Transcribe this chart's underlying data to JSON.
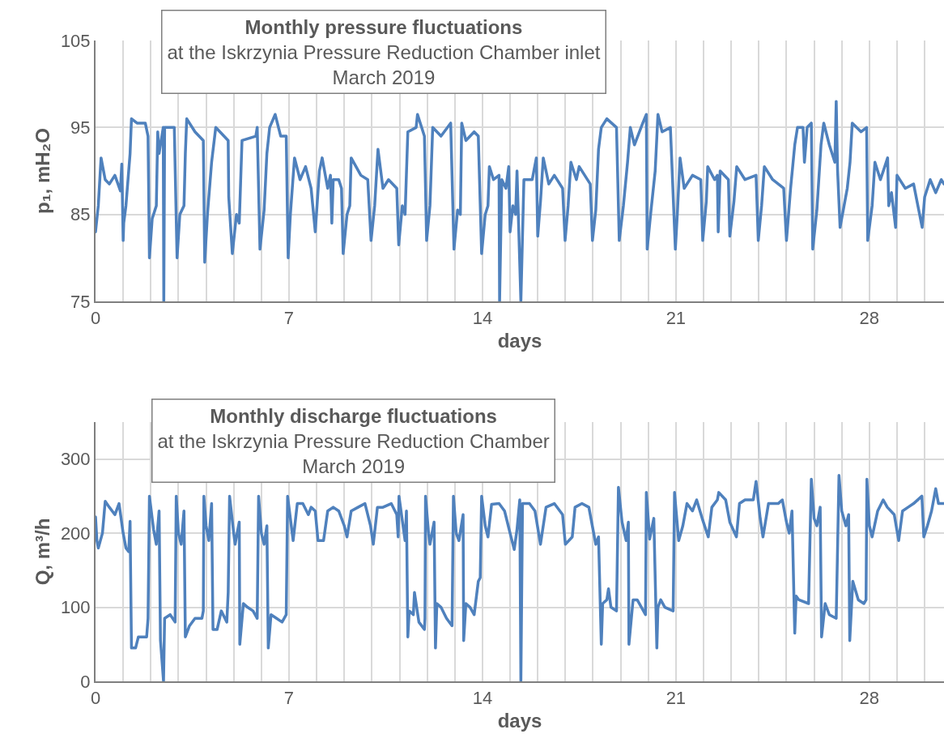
{
  "chart_data": [
    {
      "type": "line",
      "title": "Monthly pressure fluctuations",
      "subtitle": "at the Iskrzynia Pressure Reduction Chamber inlet\nMarch 2019",
      "xlabel": "days",
      "ylabel": "p₁, mH₂O",
      "xlim": [
        0,
        30.7
      ],
      "xticks": [
        0,
        {
          "value": 1,
          "label": null
        },
        {
          "value": 2,
          "label": null
        },
        {
          "value": 3,
          "label": null
        },
        {
          "value": 4,
          "label": null
        },
        {
          "value": 5,
          "label": null
        },
        {
          "value": 6,
          "label": null
        },
        7,
        {
          "value": 8,
          "label": null
        },
        {
          "value": 9,
          "label": null
        },
        {
          "value": 10,
          "label": null
        },
        {
          "value": 11,
          "label": null
        },
        {
          "value": 12,
          "label": null
        },
        {
          "value": 13,
          "label": null
        },
        14,
        {
          "value": 15,
          "label": null
        },
        {
          "value": 16,
          "label": null
        },
        {
          "value": 17,
          "label": null
        },
        {
          "value": 18,
          "label": null
        },
        {
          "value": 19,
          "label": null
        },
        {
          "value": 20,
          "label": null
        },
        21,
        {
          "value": 22,
          "label": null
        },
        {
          "value": 23,
          "label": null
        },
        {
          "value": 24,
          "label": null
        },
        {
          "value": 25,
          "label": null
        },
        {
          "value": 26,
          "label": null
        },
        {
          "value": 27,
          "label": null
        },
        28,
        {
          "value": 29,
          "label": null
        },
        {
          "value": 30,
          "label": null
        }
      ],
      "ylim": [
        75,
        105
      ],
      "yticks": [
        75,
        85,
        95,
        105
      ],
      "grid": true,
      "marker": "none",
      "line_style": "solid",
      "series": [
        {
          "color": "#4f81bd",
          "x": [
            0,
            0.1,
            0.2,
            0.35,
            0.5,
            0.7,
            0.9,
            0.95,
            1.0,
            1.02,
            1.1,
            1.25,
            1.3,
            1.5,
            1.8,
            1.9,
            1.95,
            2.05,
            2.2,
            2.25,
            2.3,
            2.45,
            2.47,
            2.5,
            2.85,
            2.95,
            3.05,
            3.2,
            3.25,
            3.3,
            3.6,
            3.9,
            3.95,
            4.05,
            4.2,
            4.35,
            4.8,
            4.82,
            4.95,
            5.1,
            5.2,
            5.3,
            5.8,
            5.85,
            5.95,
            6.1,
            6.2,
            6.3,
            6.5,
            6.7,
            6.9,
            6.97,
            7.05,
            7.2,
            7.4,
            7.6,
            7.8,
            7.95,
            8.1,
            8.2,
            8.4,
            8.5,
            8.55,
            8.6,
            8.8,
            8.9,
            8.96,
            9.1,
            9.2,
            9.25,
            9.6,
            9.85,
            9.97,
            10.1,
            10.22,
            10.4,
            10.6,
            10.9,
            10.97,
            11.1,
            11.2,
            11.3,
            11.6,
            11.65,
            11.9,
            11.98,
            12.1,
            12.2,
            12.5,
            12.85,
            12.97,
            13.1,
            13.2,
            13.25,
            13.4,
            13.7,
            13.85,
            13.97,
            14.1,
            14.2,
            14.25,
            14.4,
            14.6,
            14.62,
            14.7,
            14.85,
            14.95,
            15.0,
            15.1,
            15.2,
            15.25,
            15.39,
            15.5,
            15.8,
            15.95,
            16.0,
            16.1,
            16.2,
            16.4,
            16.6,
            16.9,
            16.99,
            17.1,
            17.2,
            17.4,
            17.5,
            17.9,
            17.98,
            18.1,
            18.2,
            18.3,
            18.5,
            18.85,
            18.95,
            19.1,
            19.25,
            19.35,
            19.5,
            19.8,
            19.93,
            19.96,
            20.1,
            20.25,
            20.35,
            20.5,
            20.8,
            20.98,
            21.05,
            21.15,
            21.3,
            21.6,
            21.9,
            21.97,
            22.1,
            22.15,
            22.4,
            22.5,
            22.53,
            22.6,
            22.9,
            22.95,
            23.1,
            23.2,
            23.5,
            23.9,
            23.98,
            24.1,
            24.2,
            24.5,
            24.9,
            25.0,
            25.15,
            25.3,
            25.4,
            25.6,
            25.65,
            25.75,
            25.9,
            25.95,
            26.1,
            26.25,
            26.35,
            26.55,
            26.75,
            26.8,
            26.85,
            26.94,
            27.2,
            27.3,
            27.38,
            27.7,
            27.9,
            27.94,
            28.1,
            28.2,
            28.4,
            28.66,
            28.7,
            28.8,
            28.95,
            29.0,
            29.3,
            29.6,
            29.91,
            30.0,
            30.2,
            30.4,
            30.6,
            30.7
          ],
          "values": [
            83,
            86,
            91.5,
            89,
            88.5,
            89.5,
            87.7,
            90.8,
            82,
            84,
            86,
            92,
            96,
            95.5,
            95.5,
            94,
            80,
            84.5,
            86,
            94.5,
            92,
            95,
            75,
            95,
            95,
            80,
            85,
            86,
            92,
            96,
            94.5,
            93.5,
            79.5,
            85,
            91,
            95,
            93.5,
            87,
            80.5,
            85,
            84,
            93.5,
            94,
            95,
            81,
            85.5,
            92,
            95,
            96.5,
            94,
            94,
            80,
            85,
            91.5,
            89,
            90.5,
            88,
            83,
            90,
            91.5,
            88,
            89.5,
            84,
            89,
            89,
            88,
            80.5,
            85,
            86,
            91.5,
            89.5,
            89,
            82,
            86,
            92.5,
            88,
            89,
            88,
            81.5,
            86,
            85,
            94.5,
            95,
            96.5,
            94,
            82,
            86,
            95,
            94,
            95.5,
            81,
            85.5,
            85,
            95.5,
            93.5,
            94.5,
            94,
            80.5,
            85,
            86,
            90.5,
            89,
            89.5,
            75,
            89,
            88,
            90.5,
            83,
            86,
            85,
            90,
            75,
            89,
            89,
            91.5,
            82.5,
            86.5,
            91.5,
            88.5,
            89.5,
            88,
            82,
            86,
            91,
            89,
            90.5,
            88.5,
            82,
            85.5,
            92.5,
            95,
            96,
            95,
            82,
            86,
            91,
            95,
            93,
            95.5,
            96.5,
            81,
            85.5,
            90,
            96.5,
            94.5,
            95,
            81,
            85,
            91.5,
            88,
            89.5,
            89,
            82,
            86.5,
            90.5,
            89,
            89.5,
            83,
            90,
            89,
            82.5,
            86.5,
            90.5,
            89,
            89.5,
            82,
            86,
            90.5,
            89,
            88,
            82,
            88,
            93,
            95,
            95,
            91,
            95,
            95.5,
            81,
            85.5,
            93,
            95.5,
            93,
            91,
            98,
            90,
            83.5,
            88,
            91,
            95.5,
            94.5,
            95,
            82,
            86,
            91,
            89,
            91.5,
            86,
            87.5,
            83.5,
            89.5,
            88,
            88.5,
            83.5,
            87,
            89,
            87.5,
            89,
            88.5
          ]
        }
      ]
    },
    {
      "type": "line",
      "title": "Monthly discharge fluctuations",
      "subtitle": "at the Iskrzynia Pressure Reduction Chamber\nMarch 2019",
      "xlabel": "days",
      "ylabel": "Q, m³/h",
      "xlim": [
        0,
        30.7
      ],
      "xticks": [
        0,
        {
          "value": 1,
          "label": null
        },
        {
          "value": 2,
          "label": null
        },
        {
          "value": 3,
          "label": null
        },
        {
          "value": 4,
          "label": null
        },
        {
          "value": 5,
          "label": null
        },
        {
          "value": 6,
          "label": null
        },
        7,
        {
          "value": 8,
          "label": null
        },
        {
          "value": 9,
          "label": null
        },
        {
          "value": 10,
          "label": null
        },
        {
          "value": 11,
          "label": null
        },
        {
          "value": 12,
          "label": null
        },
        {
          "value": 13,
          "label": null
        },
        14,
        {
          "value": 15,
          "label": null
        },
        {
          "value": 16,
          "label": null
        },
        {
          "value": 17,
          "label": null
        },
        {
          "value": 18,
          "label": null
        },
        {
          "value": 19,
          "label": null
        },
        {
          "value": 20,
          "label": null
        },
        21,
        {
          "value": 22,
          "label": null
        },
        {
          "value": 23,
          "label": null
        },
        {
          "value": 24,
          "label": null
        },
        {
          "value": 25,
          "label": null
        },
        {
          "value": 26,
          "label": null
        },
        {
          "value": 27,
          "label": null
        },
        28,
        {
          "value": 29,
          "label": null
        },
        {
          "value": 30,
          "label": null
        }
      ],
      "ylim": [
        0,
        350
      ],
      "yticks": [
        0,
        100,
        200,
        300
      ],
      "grid": true,
      "marker": "none",
      "line_style": "solid",
      "series": [
        {
          "color": "#4f81bd",
          "x": [
            0,
            0.05,
            0.1,
            0.25,
            0.35,
            0.5,
            0.7,
            0.85,
            1.0,
            1.1,
            1.2,
            1.25,
            1.3,
            1.45,
            1.55,
            1.85,
            1.9,
            1.95,
            2.1,
            2.2,
            2.3,
            2.35,
            2.46,
            2.5,
            2.7,
            2.88,
            2.92,
            3.0,
            3.1,
            3.2,
            3.25,
            3.4,
            3.6,
            3.85,
            3.9,
            3.92,
            4.0,
            4.1,
            4.2,
            4.25,
            4.4,
            4.55,
            4.75,
            4.8,
            4.85,
            5.0,
            5.05,
            5.2,
            5.22,
            5.35,
            5.5,
            5.7,
            5.85,
            5.9,
            6.0,
            6.1,
            6.2,
            6.25,
            6.35,
            6.55,
            6.75,
            6.9,
            6.95,
            7.05,
            7.15,
            7.3,
            7.5,
            7.7,
            7.8,
            7.95,
            8.05,
            8.25,
            8.4,
            8.6,
            8.8,
            9.0,
            9.1,
            9.25,
            9.5,
            9.75,
            9.95,
            10.05,
            10.2,
            10.4,
            10.7,
            10.9,
            10.95,
            10.98,
            11.2,
            11.25,
            11.3,
            11.35,
            11.5,
            11.54,
            11.7,
            11.9,
            11.92,
            11.94,
            12.05,
            12.1,
            12.25,
            12.3,
            12.35,
            12.5,
            12.7,
            12.9,
            12.95,
            13.05,
            13.15,
            13.3,
            13.32,
            13.4,
            13.55,
            13.7,
            13.85,
            13.92,
            13.97,
            14.1,
            14.2,
            14.33,
            14.6,
            14.8,
            15.04,
            15.15,
            15.25,
            15.35,
            15.39,
            15.45,
            15.7,
            15.9,
            16.1,
            16.3,
            16.6,
            16.9,
            17.0,
            17.25,
            17.35,
            17.6,
            17.85,
            18.1,
            18.2,
            18.3,
            18.35,
            18.5,
            18.56,
            18.65,
            18.85,
            18.92,
            19.05,
            19.2,
            19.28,
            19.3,
            19.45,
            19.6,
            19.9,
            19.93,
            20.05,
            20.2,
            20.31,
            20.35,
            20.45,
            20.6,
            20.9,
            20.95,
            21.1,
            21.25,
            21.4,
            21.6,
            21.75,
            21.95,
            22.17,
            22.3,
            22.5,
            22.55,
            22.8,
            22.95,
            23.19,
            23.3,
            23.5,
            23.8,
            23.9,
            24.05,
            24.15,
            24.35,
            24.7,
            24.85,
            25.0,
            25.1,
            25.2,
            25.3,
            25.35,
            25.45,
            25.8,
            25.9,
            26.0,
            26.1,
            26.22,
            26.27,
            26.4,
            26.55,
            26.8,
            26.9,
            27.0,
            27.15,
            27.25,
            27.29,
            27.4,
            27.6,
            27.8,
            27.88,
            27.91,
            28.0,
            28.1,
            28.3,
            28.5,
            28.65,
            28.9,
            29.06,
            29.2,
            29.4,
            29.6,
            29.9,
            29.97,
            30.1,
            30.25,
            30.4,
            30.5,
            30.7
          ],
          "values": [
            222,
            190,
            180,
            200,
            243,
            235,
            225,
            240,
            200,
            180,
            175,
            216,
            45,
            45,
            60,
            60,
            85,
            250,
            205,
            185,
            230,
            55,
            0,
            85,
            90,
            80,
            250,
            200,
            185,
            230,
            60,
            75,
            85,
            85,
            95,
            250,
            210,
            190,
            240,
            70,
            70,
            95,
            80,
            120,
            250,
            200,
            185,
            215,
            50,
            105,
            100,
            95,
            85,
            250,
            200,
            185,
            210,
            45,
            90,
            85,
            80,
            90,
            250,
            220,
            190,
            240,
            240,
            225,
            235,
            230,
            190,
            190,
            230,
            235,
            230,
            210,
            195,
            230,
            235,
            240,
            210,
            185,
            235,
            235,
            240,
            225,
            195,
            250,
            190,
            230,
            60,
            95,
            90,
            120,
            80,
            70,
            85,
            250,
            200,
            185,
            215,
            45,
            105,
            100,
            85,
            75,
            250,
            200,
            190,
            225,
            55,
            105,
            100,
            90,
            135,
            140,
            250,
            210,
            195,
            239,
            240,
            230,
            194,
            178,
            205,
            245,
            0,
            240,
            240,
            230,
            185,
            235,
            240,
            225,
            185,
            195,
            235,
            240,
            235,
            185,
            195,
            50,
            105,
            110,
            125,
            100,
            95,
            262,
            215,
            190,
            215,
            50,
            110,
            110,
            90,
            255,
            192,
            220,
            45,
            100,
            110,
            100,
            95,
            255,
            190,
            210,
            240,
            230,
            245,
            220,
            195,
            235,
            245,
            255,
            245,
            215,
            195,
            240,
            245,
            245,
            270,
            220,
            195,
            240,
            240,
            245,
            215,
            200,
            230,
            65,
            115,
            110,
            105,
            273,
            220,
            210,
            235,
            60,
            105,
            90,
            85,
            278,
            230,
            210,
            225,
            55,
            135,
            110,
            105,
            110,
            273,
            210,
            195,
            230,
            245,
            235,
            225,
            190,
            230,
            235,
            240,
            250,
            195,
            210,
            230,
            260,
            240,
            240
          ]
        }
      ]
    }
  ]
}
